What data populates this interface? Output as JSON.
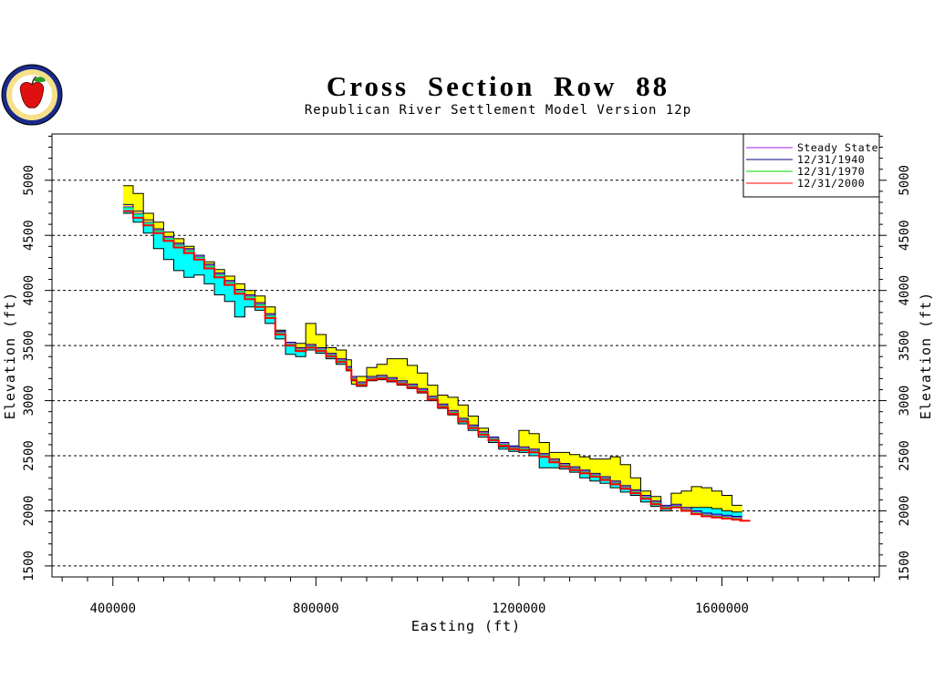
{
  "chart_data": {
    "type": "area",
    "title": "Cross Section Row 88",
    "subtitle": "Republican River Settlement Model Version 12p",
    "xlabel": "Easting (ft)",
    "ylabel": "Elevation (ft)",
    "xlim": [
      280000,
      1910000
    ],
    "ylim": [
      1400,
      5420
    ],
    "x_ticks": [
      400000,
      800000,
      1200000,
      1600000
    ],
    "y_ticks": [
      1500,
      2000,
      2500,
      3000,
      3500,
      4000,
      4500,
      5000
    ],
    "grid": "horizontal dashed at y ticks",
    "legend_position": "top-right",
    "legend": [
      {
        "label": "Steady State",
        "color": "#a020f0"
      },
      {
        "label": "12/31/1940",
        "color": "#000080"
      },
      {
        "label": "12/31/1970",
        "color": "#00dd00"
      },
      {
        "label": "12/31/2000",
        "color": "#ff0000"
      }
    ],
    "fill_colors": {
      "yellow": "#ffff00",
      "cyan": "#00ffff",
      "outline": "#000000"
    },
    "series": [
      {
        "name": "Land surface",
        "x": [
          420000,
          440000,
          460000,
          480000,
          500000,
          520000,
          540000,
          560000,
          580000,
          600000,
          620000,
          640000,
          660000,
          680000,
          700000,
          720000,
          740000,
          760000,
          780000,
          800000,
          820000,
          840000,
          860000,
          870000,
          880000,
          900000,
          920000,
          940000,
          960000,
          980000,
          1000000,
          1020000,
          1040000,
          1060000,
          1080000,
          1100000,
          1120000,
          1140000,
          1160000,
          1180000,
          1200000,
          1220000,
          1240000,
          1260000,
          1280000,
          1300000,
          1320000,
          1340000,
          1360000,
          1380000,
          1400000,
          1420000,
          1440000,
          1460000,
          1480000,
          1500000,
          1520000,
          1540000,
          1560000,
          1580000,
          1600000,
          1620000
        ],
        "y": [
          4950,
          4880,
          4700,
          4620,
          4530,
          4470,
          4400,
          4320,
          4260,
          4190,
          4130,
          4060,
          4000,
          3950,
          3850,
          3640,
          3500,
          3520,
          3700,
          3600,
          3480,
          3460,
          3370,
          3150,
          3220,
          3300,
          3330,
          3380,
          3380,
          3320,
          3250,
          3140,
          3050,
          3030,
          2960,
          2860,
          2750,
          2650,
          2580,
          2580,
          2730,
          2700,
          2620,
          2530,
          2530,
          2510,
          2490,
          2470,
          2470,
          2490,
          2420,
          2300,
          2180,
          2130,
          2040,
          2160,
          2180,
          2220,
          2210,
          2180,
          2140,
          2050
        ]
      },
      {
        "name": "Steady State",
        "x": [
          420000,
          440000,
          460000,
          480000,
          500000,
          520000,
          540000,
          560000,
          580000,
          600000,
          620000,
          640000,
          660000,
          680000,
          700000,
          720000,
          740000,
          760000,
          780000,
          800000,
          820000,
          840000,
          860000,
          870000,
          880000,
          900000,
          920000,
          940000,
          960000,
          980000,
          1000000,
          1020000,
          1040000,
          1060000,
          1080000,
          1100000,
          1120000,
          1140000,
          1160000,
          1180000,
          1200000,
          1220000,
          1240000,
          1260000,
          1280000,
          1300000,
          1320000,
          1340000,
          1360000,
          1380000,
          1400000,
          1420000,
          1440000,
          1460000,
          1480000,
          1500000,
          1520000,
          1540000,
          1560000,
          1580000,
          1600000,
          1620000
        ],
        "y": [
          4760,
          4700,
          4620,
          4550,
          4480,
          4420,
          4370,
          4310,
          4230,
          4150,
          4080,
          4000,
          3950,
          3880,
          3780,
          3620,
          3520,
          3470,
          3500,
          3470,
          3420,
          3370,
          3300,
          3210,
          3160,
          3210,
          3220,
          3200,
          3170,
          3140,
          3100,
          3030,
          2960,
          2900,
          2830,
          2770,
          2710,
          2660,
          2610,
          2580,
          2570,
          2550,
          2510,
          2460,
          2420,
          2390,
          2360,
          2330,
          2300,
          2260,
          2220,
          2180,
          2130,
          2080,
          2040,
          2050,
          2020,
          1990,
          1970,
          1960,
          1950,
          1940
        ]
      },
      {
        "name": "12/31/1940",
        "x": [
          420000,
          440000,
          460000,
          480000,
          500000,
          520000,
          540000,
          560000,
          580000,
          600000,
          620000,
          640000,
          660000,
          680000,
          700000,
          720000,
          740000,
          760000,
          780000,
          800000,
          820000,
          840000,
          860000,
          870000,
          880000,
          900000,
          920000,
          940000,
          960000,
          980000,
          1000000,
          1020000,
          1040000,
          1060000,
          1080000,
          1100000,
          1120000,
          1140000,
          1160000,
          1180000,
          1200000,
          1220000,
          1240000,
          1260000,
          1280000,
          1300000,
          1320000,
          1340000,
          1360000,
          1380000,
          1400000,
          1420000,
          1440000,
          1460000,
          1480000,
          1500000,
          1520000,
          1540000,
          1560000,
          1580000,
          1600000,
          1620000
        ],
        "y": [
          4780,
          4720,
          4640,
          4560,
          4490,
          4430,
          4380,
          4320,
          4240,
          4160,
          4090,
          4010,
          3960,
          3890,
          3790,
          3630,
          3530,
          3480,
          3510,
          3480,
          3430,
          3380,
          3310,
          3220,
          3170,
          3220,
          3230,
          3210,
          3180,
          3150,
          3110,
          3040,
          2970,
          2910,
          2840,
          2780,
          2720,
          2670,
          2620,
          2590,
          2580,
          2560,
          2520,
          2470,
          2430,
          2400,
          2370,
          2340,
          2310,
          2270,
          2230,
          2190,
          2140,
          2090,
          2050,
          2060,
          2030,
          2000,
          1980,
          1970,
          1960,
          1950
        ]
      },
      {
        "name": "12/31/1970",
        "x": [
          420000,
          440000,
          460000,
          480000,
          500000,
          520000,
          540000,
          560000,
          580000,
          600000,
          620000,
          640000,
          660000,
          680000,
          700000,
          720000,
          740000,
          760000,
          780000,
          800000,
          820000,
          840000,
          860000,
          870000,
          880000,
          900000,
          920000,
          940000,
          960000,
          980000,
          1000000,
          1020000,
          1040000,
          1060000,
          1080000,
          1100000,
          1120000,
          1140000,
          1160000,
          1180000,
          1200000,
          1220000,
          1240000,
          1260000,
          1280000,
          1300000,
          1320000,
          1340000,
          1360000,
          1380000,
          1400000,
          1420000,
          1440000,
          1460000,
          1480000,
          1500000,
          1520000,
          1540000,
          1560000,
          1580000,
          1600000,
          1620000
        ],
        "y": [
          4750,
          4690,
          4610,
          4540,
          4470,
          4410,
          4360,
          4300,
          4220,
          4140,
          4070,
          3990,
          3940,
          3870,
          3770,
          3610,
          3510,
          3460,
          3490,
          3460,
          3410,
          3360,
          3290,
          3200,
          3150,
          3200,
          3210,
          3190,
          3160,
          3130,
          3090,
          3020,
          2950,
          2890,
          2820,
          2760,
          2700,
          2650,
          2600,
          2570,
          2560,
          2540,
          2500,
          2450,
          2410,
          2380,
          2350,
          2320,
          2290,
          2250,
          2210,
          2170,
          2120,
          2070,
          2030,
          2040,
          2010,
          1980,
          1960,
          1950,
          1940,
          1930
        ]
      },
      {
        "name": "12/31/2000",
        "x": [
          420000,
          440000,
          460000,
          480000,
          500000,
          520000,
          540000,
          560000,
          580000,
          600000,
          620000,
          640000,
          660000,
          680000,
          700000,
          720000,
          740000,
          760000,
          780000,
          800000,
          820000,
          840000,
          860000,
          870000,
          880000,
          900000,
          920000,
          940000,
          960000,
          980000,
          1000000,
          1020000,
          1040000,
          1060000,
          1080000,
          1100000,
          1120000,
          1140000,
          1160000,
          1180000,
          1200000,
          1220000,
          1240000,
          1260000,
          1280000,
          1300000,
          1320000,
          1340000,
          1360000,
          1380000,
          1400000,
          1420000,
          1440000,
          1460000,
          1480000,
          1500000,
          1520000,
          1540000,
          1560000,
          1580000,
          1600000,
          1620000
        ],
        "y": [
          4720,
          4660,
          4590,
          4520,
          4450,
          4390,
          4340,
          4280,
          4200,
          4120,
          4050,
          3970,
          3920,
          3850,
          3750,
          3600,
          3500,
          3450,
          3480,
          3450,
          3400,
          3350,
          3280,
          3190,
          3140,
          3190,
          3200,
          3180,
          3150,
          3120,
          3080,
          3010,
          2940,
          2880,
          2810,
          2750,
          2690,
          2640,
          2590,
          2560,
          2550,
          2530,
          2490,
          2440,
          2400,
          2370,
          2340,
          2310,
          2280,
          2240,
          2200,
          2160,
          2110,
          2060,
          2020,
          2030,
          2000,
          1970,
          1950,
          1940,
          1930,
          1920
        ]
      },
      {
        "name": "Aquifer base",
        "x": [
          420000,
          440000,
          460000,
          480000,
          500000,
          520000,
          540000,
          560000,
          580000,
          600000,
          620000,
          640000,
          660000,
          680000,
          700000,
          720000,
          740000,
          760000,
          780000,
          800000,
          820000,
          840000,
          860000,
          870000,
          880000,
          900000,
          920000,
          940000,
          960000,
          980000,
          1000000,
          1020000,
          1040000,
          1060000,
          1080000,
          1100000,
          1120000,
          1140000,
          1160000,
          1180000,
          1200000,
          1220000,
          1240000,
          1260000,
          1280000,
          1300000,
          1320000,
          1340000,
          1360000,
          1380000,
          1400000,
          1420000,
          1440000,
          1460000,
          1480000,
          1500000,
          1520000,
          1540000,
          1560000,
          1580000,
          1600000,
          1620000
        ],
        "y": [
          4700,
          4620,
          4520,
          4380,
          4280,
          4180,
          4120,
          4140,
          4060,
          3960,
          3900,
          3760,
          3850,
          3820,
          3700,
          3560,
          3420,
          3400,
          3460,
          3430,
          3380,
          3330,
          3270,
          3180,
          3130,
          3180,
          3190,
          3170,
          3140,
          3110,
          3070,
          3000,
          2930,
          2870,
          2790,
          2730,
          2670,
          2620,
          2560,
          2540,
          2530,
          2500,
          2390,
          2390,
          2380,
          2350,
          2300,
          2270,
          2250,
          2210,
          2170,
          2140,
          2080,
          2040,
          2000,
          2030,
          2020,
          2030,
          2030,
          2020,
          2000,
          1990
        ]
      }
    ],
    "annotations": [
      {
        "series": "12/31/2000",
        "x": 1645000,
        "y": 1910,
        "note": "short red dash right of main profile"
      }
    ]
  }
}
